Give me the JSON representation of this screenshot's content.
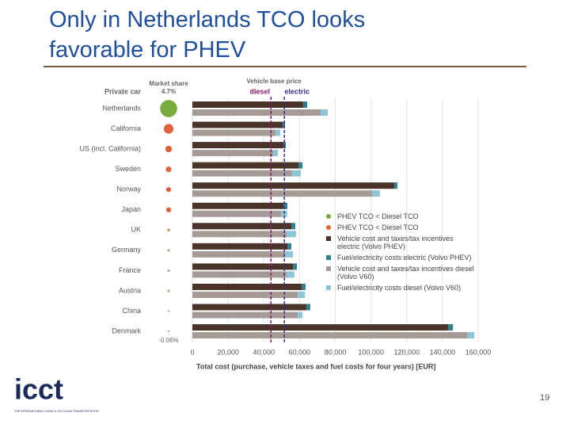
{
  "slide": {
    "title_lines": [
      "Only in Netherlands TCO looks",
      "favorable for PHEV"
    ],
    "page_number": "19",
    "logo": {
      "text": "icct",
      "tagline": "THE INTERNATIONAL COUNCIL ON CLEAN TRANSPORTATION"
    }
  },
  "chart_data": {
    "type": "stacked-hbar",
    "category_header": "Private car",
    "categories": [
      "Netherlands",
      "California",
      "US (incl. California)",
      "Sweden",
      "Norway",
      "Japan",
      "UK",
      "Germany",
      "France",
      "Austria",
      "China",
      "Denmark"
    ],
    "market_share": {
      "header": "Market share",
      "values": [
        4.7,
        1.5,
        0.7,
        0.5,
        0.4,
        0.4,
        0.15,
        0.1,
        0.1,
        0.1,
        0.05,
        -0.06
      ],
      "value_labels": [
        "4.7%",
        null,
        null,
        null,
        null,
        null,
        null,
        null,
        null,
        null,
        null,
        "-0.06%"
      ],
      "colors": [
        "#7aab3f",
        "#e0623a",
        "#e0623a",
        "#e0623a",
        "#e0623a",
        "#e0623a",
        "#c9a27a",
        "#c9a27a",
        "#c9a27a",
        "#c9a27a",
        "#c9a27a",
        "#c9a27a"
      ]
    },
    "dot_legend": [
      {
        "label": "PHEV TCO < Diesel TCO",
        "color": "#7aab3f"
      },
      {
        "label": "PHEV TCO < Diesel TCO",
        "color": "#e0623a"
      }
    ],
    "reference_header": "Vehicle base price",
    "reference_lines": [
      {
        "label": "diesel",
        "value": 44000,
        "color": "#8b1a6b"
      },
      {
        "label": "electric",
        "value": 51500,
        "color": "#3b2a8a"
      }
    ],
    "series": [
      {
        "name": "Vehicle cost and taxes/tax incentives electric (Volvo PHEV)",
        "stack": "phev",
        "color": "#4a3329",
        "values": [
          62000,
          50500,
          51000,
          59400,
          113000,
          51000,
          55400,
          53200,
          56300,
          61200,
          63800,
          143200
        ]
      },
      {
        "name": "Fuel/electricity costs electric (Volvo PHEV)",
        "stack": "phev",
        "color": "#2f7f8c",
        "values": [
          2300,
          1400,
          1300,
          2200,
          1800,
          2200,
          2200,
          2200,
          2200,
          2200,
          2200,
          2700
        ]
      },
      {
        "name": "Vehicle cost and taxes/tax incentives diesel (Volvo V60)",
        "stack": "diesel",
        "color": "#a59a95",
        "values": [
          71800,
          46500,
          45200,
          55800,
          100600,
          49600,
          52700,
          51900,
          52700,
          59000,
          59000,
          153800
        ]
      },
      {
        "name": "Fuel/electricity costs diesel (Volvo V60)",
        "stack": "diesel",
        "color": "#8cc5d6",
        "values": [
          4000,
          2700,
          2700,
          4900,
          4400,
          3500,
          5300,
          4400,
          4400,
          4000,
          2700,
          4000
        ]
      }
    ],
    "xlabel": "Total cost (purchase, vehicle taxes and fuel costs for four years) [EUR]",
    "xlim": [
      0,
      160000
    ],
    "xticks": [
      0,
      {
        "value": 20000,
        "label": "20,000"
      },
      {
        "value": 40000,
        "label": "40,000"
      },
      {
        "value": 60000,
        "label": "60,000"
      },
      {
        "value": 80000,
        "label": "80,000"
      },
      {
        "value": 100000,
        "label": "100,000"
      },
      {
        "value": 120000,
        "label": "120,000"
      },
      {
        "value": 140000,
        "label": "140,000"
      },
      {
        "value": 160000,
        "label": "160,000"
      }
    ],
    "grid": true
  }
}
